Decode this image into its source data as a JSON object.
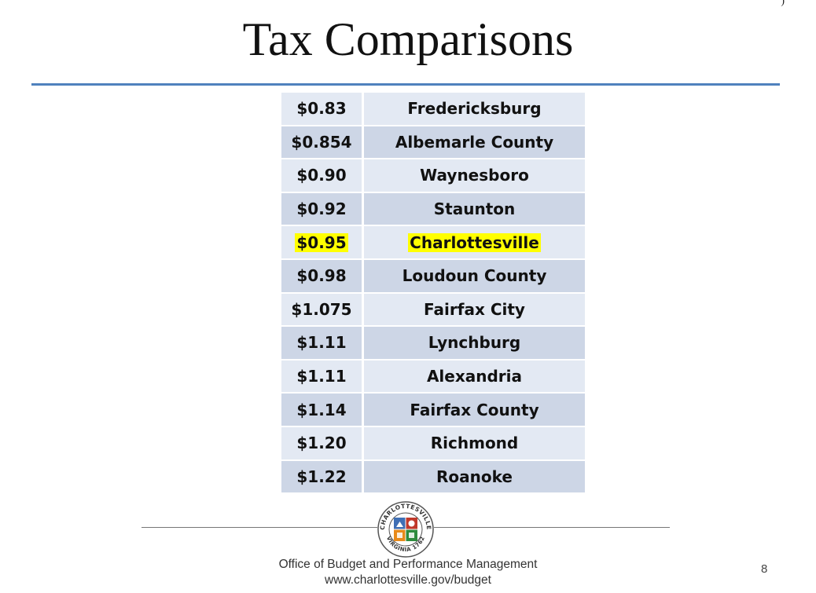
{
  "slide": {
    "title": "Tax Comparisons",
    "corner_mark": ")",
    "page_number": "8"
  },
  "table": {
    "rows": [
      {
        "rate": "$0.83",
        "locality": "Fredericksburg",
        "highlighted": false
      },
      {
        "rate": "$0.854",
        "locality": "Albemarle County",
        "highlighted": false
      },
      {
        "rate": "$0.90",
        "locality": "Waynesboro",
        "highlighted": false
      },
      {
        "rate": "$0.92",
        "locality": "Staunton",
        "highlighted": false
      },
      {
        "rate": "$0.95",
        "locality": "Charlottesville",
        "highlighted": true
      },
      {
        "rate": "$0.98",
        "locality": "Loudoun County",
        "highlighted": false
      },
      {
        "rate": "$1.075",
        "locality": "Fairfax City",
        "highlighted": false
      },
      {
        "rate": "$1.11",
        "locality": "Lynchburg",
        "highlighted": false
      },
      {
        "rate": "$1.11",
        "locality": "Alexandria",
        "highlighted": false
      },
      {
        "rate": "$1.14",
        "locality": "Fairfax County",
        "highlighted": false
      },
      {
        "rate": "$1.20",
        "locality": "Richmond",
        "highlighted": false
      },
      {
        "rate": "$1.22",
        "locality": "Roanoke",
        "highlighted": false
      }
    ],
    "highlight_color": "#ffff00"
  },
  "footer": {
    "seal_top_text": "CHARLOTTESVILLE",
    "seal_bottom_text": "VIRGINIA 1762",
    "office": "Office of Budget and Performance Management",
    "url": "www.charlottesville.gov/budget"
  },
  "colors": {
    "title_rule": "#4f81bd",
    "row_light": "#e3e9f3",
    "row_dark": "#cdd6e6"
  }
}
